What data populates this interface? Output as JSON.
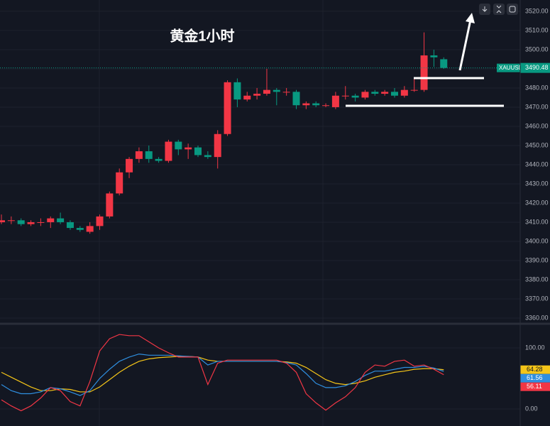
{
  "chart_data": [
    {
      "type": "candlestick",
      "title": "黄金1小时",
      "symbol": "XAUUSD",
      "open": [
        3410,
        3411,
        3411,
        3409,
        3410,
        3410,
        3412,
        3410,
        3407,
        3405,
        3408,
        3413,
        3425,
        3436,
        3443,
        3447,
        3443,
        3442,
        3452,
        3448,
        3449,
        3445,
        3444,
        3456,
        3483,
        3474,
        3476,
        3477,
        3479,
        3478,
        3478,
        3471,
        3472,
        3471,
        3470,
        3476,
        3476,
        3475,
        3478,
        3477,
        3478,
        3476,
        3479,
        3479,
        3497,
        3495
      ],
      "high": [
        3414,
        3413,
        3412,
        3411,
        3412,
        3413,
        3415,
        3411,
        3408,
        3410,
        3414,
        3426,
        3438,
        3444,
        3449,
        3450,
        3444,
        3453,
        3453,
        3451,
        3450,
        3447,
        3458,
        3484,
        3485,
        3478,
        3480,
        3490,
        3480,
        3480,
        3479,
        3473,
        3473,
        3472,
        3478,
        3481,
        3477,
        3479,
        3479,
        3479,
        3480,
        3481,
        3485,
        3509,
        3500,
        3496
      ],
      "low": [
        3409,
        3409,
        3408,
        3408,
        3408,
        3407,
        3409,
        3406,
        3405,
        3404,
        3406,
        3412,
        3424,
        3433,
        3441,
        3441,
        3441,
        3441,
        3445,
        3443,
        3444,
        3443,
        3438,
        3455,
        3470,
        3473,
        3474,
        3476,
        3471,
        3476,
        3469,
        3469,
        3470,
        3470,
        3469,
        3474,
        3473,
        3474,
        3476,
        3476,
        3475,
        3475,
        3478,
        3478,
        3491,
        3490
      ],
      "close": [
        3411,
        3411,
        3409,
        3410,
        3410,
        3412,
        3410,
        3407,
        3406,
        3408,
        3413,
        3425,
        3436,
        3443,
        3447,
        3443,
        3442,
        3452,
        3448,
        3449,
        3445,
        3444,
        3456,
        3483,
        3474,
        3476,
        3477,
        3479,
        3478,
        3478,
        3471,
        3472,
        3471,
        3471,
        3476,
        3476,
        3475,
        3478,
        3477,
        3478,
        3476,
        3479,
        3479,
        3497,
        3496,
        3490.48
      ],
      "up_color": "#f23645",
      "down_color": "#089981",
      "price_line": {
        "value": 3490.48,
        "label": "3490.48"
      },
      "ylim": [
        3357.4,
        3525.9
      ],
      "yticks": [
        {
          "value": 3360,
          "label": "3360.00"
        },
        {
          "value": 3370,
          "label": "3370.00"
        },
        {
          "value": 3380,
          "label": "3380.00"
        },
        {
          "value": 3390,
          "label": "3390.00"
        },
        {
          "value": 3400,
          "label": "3400.00"
        },
        {
          "value": 3410,
          "label": "3410.00"
        },
        {
          "value": 3420,
          "label": "3420.00"
        },
        {
          "value": 3430,
          "label": "3430.00"
        },
        {
          "value": 3440,
          "label": "3440.00"
        },
        {
          "value": 3450,
          "label": "3450.00"
        },
        {
          "value": 3460,
          "label": "3460.00"
        },
        {
          "value": 3470,
          "label": "3470.00"
        },
        {
          "value": 3480,
          "label": "3480.00"
        },
        {
          "value": 3490,
          "label": "3490.00"
        },
        {
          "value": 3500,
          "label": "3500.00"
        },
        {
          "value": 3510,
          "label": "3510.00"
        },
        {
          "value": 3520,
          "label": "3520.00"
        }
      ],
      "grid": true
    },
    {
      "type": "line",
      "series": [
        {
          "color": "#f5c518",
          "values": [
            60,
            52,
            44,
            36,
            30,
            30,
            33,
            32,
            28,
            28,
            36,
            48,
            60,
            70,
            78,
            82,
            84,
            85,
            86,
            86,
            85,
            80,
            78,
            78,
            78,
            78,
            78,
            78,
            78,
            77,
            75,
            68,
            58,
            48,
            42,
            40,
            42,
            46,
            52,
            56,
            60,
            62,
            65,
            66,
            66,
            64.28
          ]
        },
        {
          "color": "#2f8fe0",
          "values": [
            40,
            30,
            25,
            25,
            28,
            35,
            33,
            28,
            22,
            30,
            50,
            65,
            78,
            85,
            90,
            88,
            88,
            88,
            87,
            86,
            85,
            72,
            78,
            78,
            78,
            78,
            78,
            78,
            78,
            76,
            72,
            58,
            42,
            35,
            35,
            38,
            45,
            55,
            62,
            62,
            65,
            68,
            68,
            70,
            67,
            61.56
          ]
        },
        {
          "color": "#f23645",
          "values": [
            15,
            5,
            -3,
            5,
            18,
            35,
            30,
            12,
            5,
            45,
            95,
            115,
            122,
            120,
            120,
            110,
            100,
            92,
            85,
            85,
            85,
            40,
            75,
            80,
            80,
            80,
            80,
            80,
            80,
            75,
            60,
            25,
            10,
            -2,
            10,
            20,
            35,
            60,
            72,
            70,
            78,
            80,
            70,
            72,
            65,
            56.11
          ]
        }
      ],
      "ylim": [
        -27.9,
        137.2
      ],
      "yticks": [
        {
          "value": 0,
          "label": "0.00"
        },
        {
          "value": 100,
          "label": "100.00"
        }
      ],
      "grid": true
    }
  ]
}
